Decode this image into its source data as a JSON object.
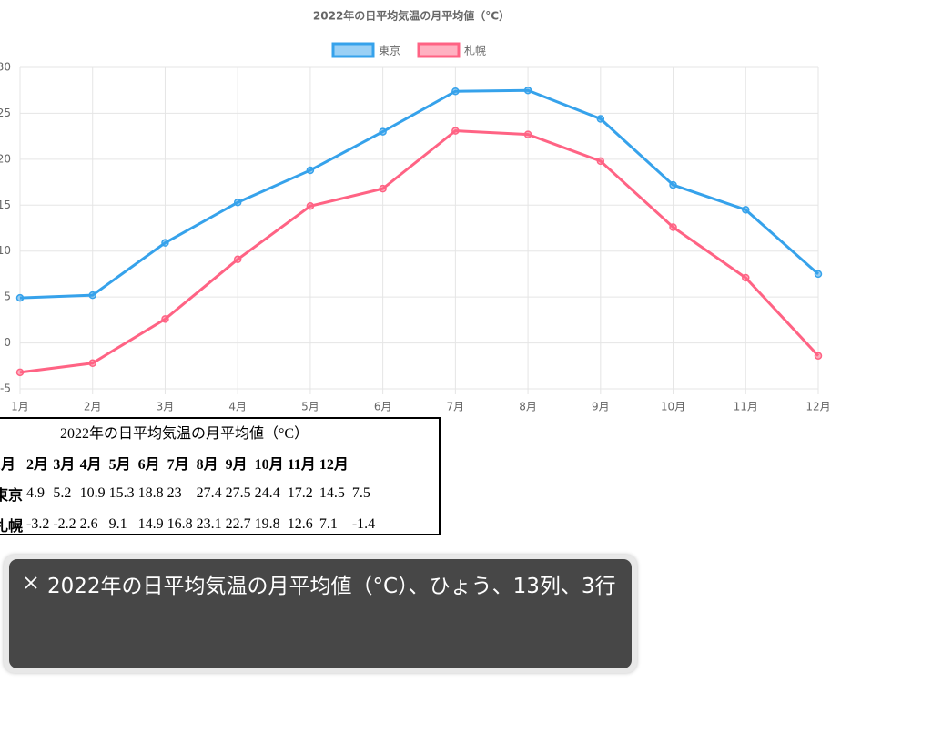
{
  "chart_data": {
    "type": "line",
    "title": "2022年の日平均気温の月平均値（°C）",
    "categories": [
      "1月",
      "2月",
      "3月",
      "4月",
      "5月",
      "6月",
      "7月",
      "8月",
      "9月",
      "10月",
      "11月",
      "12月"
    ],
    "series": [
      {
        "name": "東京",
        "color": "#36a2eb",
        "values": [
          4.9,
          5.2,
          10.9,
          15.3,
          18.8,
          23,
          27.4,
          27.5,
          24.4,
          17.2,
          14.5,
          7.5
        ]
      },
      {
        "name": "札幌",
        "color": "#ff6384",
        "values": [
          -3.2,
          -2.2,
          2.6,
          9.1,
          14.9,
          16.8,
          23.1,
          22.7,
          19.8,
          12.6,
          7.1,
          -1.4
        ]
      }
    ],
    "ylim": [
      -5,
      30
    ],
    "yticks": [
      -5,
      0,
      5,
      10,
      15,
      20,
      25,
      30
    ],
    "grid": true,
    "legend": "top"
  },
  "caption": {
    "text": "2022年の日平均気温の月平均値（°C）、ひょう、13列、3行"
  }
}
